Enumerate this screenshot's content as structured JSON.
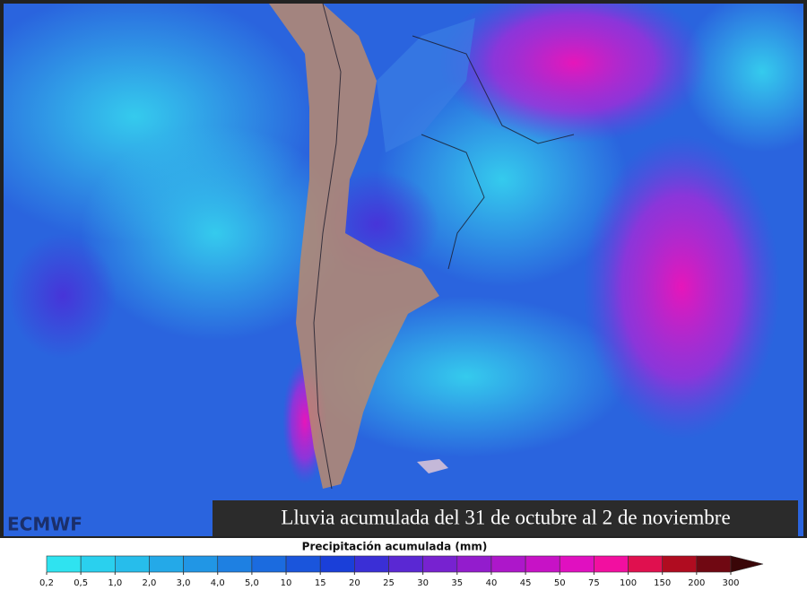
{
  "caption": "Lluvia acumulada del 31 de octubre al  2 de noviembre",
  "logo": "ECMWF",
  "legend": {
    "title": "Precipitación acumulada (mm)",
    "items": [
      {
        "label": "0,2",
        "color": "#2fe3f0"
      },
      {
        "label": "0,5",
        "color": "#2ad0ee"
      },
      {
        "label": "1,0",
        "color": "#27bdeb"
      },
      {
        "label": "2,0",
        "color": "#24a9e8"
      },
      {
        "label": "3,0",
        "color": "#2196e5"
      },
      {
        "label": "4,0",
        "color": "#1e80e2"
      },
      {
        "label": "5,0",
        "color": "#1b6bdf"
      },
      {
        "label": "10",
        "color": "#1a55dc"
      },
      {
        "label": "15",
        "color": "#1a3fd9"
      },
      {
        "label": "20",
        "color": "#3a2fd6"
      },
      {
        "label": "25",
        "color": "#5a28d3"
      },
      {
        "label": "30",
        "color": "#7722d0"
      },
      {
        "label": "35",
        "color": "#931ccd"
      },
      {
        "label": "40",
        "color": "#ad17ca"
      },
      {
        "label": "45",
        "color": "#c712c6"
      },
      {
        "label": "50",
        "color": "#e010c0"
      },
      {
        "label": "75",
        "color": "#f20fa0"
      },
      {
        "label": "100",
        "color": "#e0104f"
      },
      {
        "label": "150",
        "color": "#b00c20"
      },
      {
        "label": "200",
        "color": "#700812"
      },
      {
        "label": "300",
        "color": "#3a0608"
      }
    ]
  }
}
